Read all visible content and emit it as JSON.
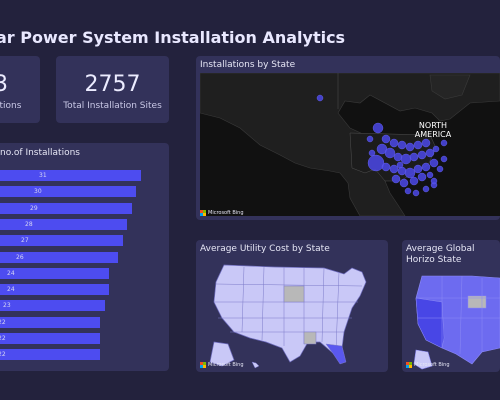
{
  "dashboard": {
    "title": "ar Power System Installation Analytics"
  },
  "kpis": [
    {
      "value": "3",
      "label": "ations"
    },
    {
      "value": "2757",
      "label": "Total Installation Sites"
    }
  ],
  "bar_panel": {
    "title": "no.of Installations",
    "values": [
      "31",
      "30",
      "29",
      "28",
      "27",
      "26",
      "24",
      "24",
      "23",
      "22",
      "22",
      "22"
    ]
  },
  "map_panel": {
    "title": "Installations by State",
    "north_america": "NORTH AMERICA",
    "attribution": "Microsoft Bing"
  },
  "utility_panel": {
    "title": "Average Utility Cost by State"
  },
  "irradiance_panel": {
    "title": "Average Global Horizo State"
  },
  "colors": {
    "background": "#23223d",
    "card": "#33325a",
    "accent": "#4d4cf0"
  },
  "chart_data": {
    "type": "bar",
    "title": "no.of Installations",
    "values": [
      31,
      30,
      29,
      28,
      27,
      26,
      24,
      24,
      23,
      22,
      22,
      22
    ]
  }
}
